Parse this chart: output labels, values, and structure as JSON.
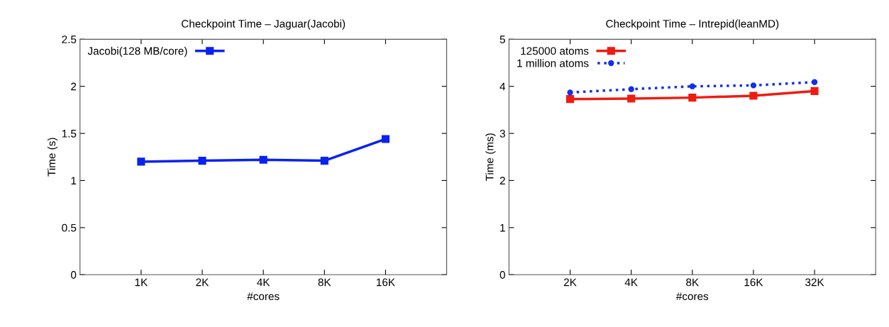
{
  "chart_data": [
    {
      "type": "line",
      "title": "Checkpoint Time – Jaguar(Jacobi)",
      "xlabel": "#cores",
      "ylabel": "Time (s)",
      "categories": [
        "1K",
        "2K",
        "4K",
        "8K",
        "16K"
      ],
      "series": [
        {
          "name": "Jacobi(128 MB/core)",
          "color": "#0a22ee",
          "values": [
            1.2,
            1.21,
            1.22,
            1.21,
            1.44
          ],
          "marker": "square",
          "line_style": "solid"
        }
      ],
      "ylim": [
        0,
        2.5
      ],
      "yticks": [
        0,
        0.5,
        1,
        1.5,
        2,
        2.5
      ],
      "grid": false,
      "legend": "top left"
    },
    {
      "type": "line",
      "title": "Checkpoint Time – Intrepid(leanMD)",
      "xlabel": "#cores",
      "ylabel": "Time (ms)",
      "categories": [
        "2K",
        "4K",
        "8K",
        "16K",
        "32K"
      ],
      "series": [
        {
          "name": "125000 atoms",
          "color": "#ee1c10",
          "values": [
            3.73,
            3.74,
            3.76,
            3.8,
            3.9
          ],
          "marker": "square",
          "line_style": "solid"
        },
        {
          "name": "1 million atoms",
          "color": "#1030ee",
          "values": [
            3.87,
            3.94,
            4.0,
            4.02,
            4.09
          ],
          "marker": "circle",
          "line_style": "dotted"
        }
      ],
      "ylim": [
        0,
        5
      ],
      "yticks": [
        0,
        1,
        2,
        3,
        4,
        5
      ],
      "grid": false,
      "legend": "top left"
    }
  ]
}
